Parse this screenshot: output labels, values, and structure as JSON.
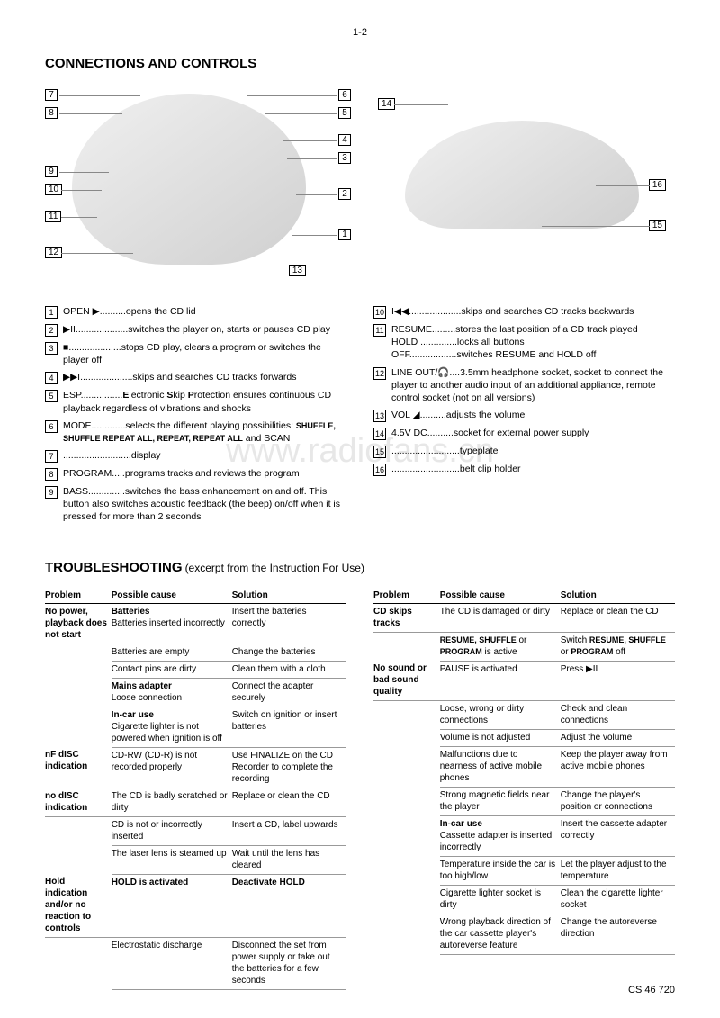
{
  "page_number": "1-2",
  "title": "CONNECTIONS AND CONTROLS",
  "watermark": "www.radiofans.cn",
  "diagram1_callouts": [
    "1",
    "2",
    "3",
    "4",
    "5",
    "6",
    "7",
    "8",
    "9",
    "10",
    "11",
    "12",
    "13"
  ],
  "diagram2_callouts": [
    "14",
    "15",
    "16"
  ],
  "controls_left": [
    {
      "num": "1",
      "label": "OPEN ▶",
      "desc": "..........opens the CD lid"
    },
    {
      "num": "2",
      "label": "▶II",
      "desc": "....................switches the player on, starts or pauses CD play"
    },
    {
      "num": "3",
      "label": "■",
      "desc": "....................stops CD play, clears a program or switches the player off"
    },
    {
      "num": "4",
      "label": "▶▶I",
      "desc": "....................skips and searches CD tracks forwards"
    },
    {
      "num": "5",
      "label": "ESP",
      "desc": "................Electronic Skip Protection ensures continuous CD playback regardless of vibrations and shocks"
    },
    {
      "num": "6",
      "label": "MODE",
      "desc": ".............selects the different playing possibilities: SHUFFLE, SHUFFLE REPEAT ALL, REPEAT, REPEAT ALL and SCAN"
    },
    {
      "num": "7",
      "label": "",
      "desc": "..........................display"
    },
    {
      "num": "8",
      "label": "PROGRAM",
      "desc": ".....programs tracks and reviews the program"
    },
    {
      "num": "9",
      "label": "BASS",
      "desc": "..............switches the bass enhancement on and off. This button also switches acoustic feedback (the beep) on/off when it is pressed for more than 2 seconds"
    }
  ],
  "controls_right": [
    {
      "num": "10",
      "label": "I◀◀",
      "desc": "....................skips and searches CD tracks backwards"
    },
    {
      "num": "11",
      "label": "RESUME",
      "desc": ".........stores the last position of a CD track played\nHOLD ..............locks all buttons\nOFF..................switches RESUME and HOLD off"
    },
    {
      "num": "12",
      "label": "LINE OUT/🎧",
      "desc": "....3.5mm headphone socket, socket to connect the player to another audio input of an additional appliance, remote control socket (not on all versions)"
    },
    {
      "num": "13",
      "label": "VOL ◢",
      "desc": "..........adjusts the volume"
    },
    {
      "num": "14",
      "label": "4.5V DC",
      "desc": "..........socket for external power supply"
    },
    {
      "num": "15",
      "label": "",
      "desc": "..........................typeplate"
    },
    {
      "num": "16",
      "label": "",
      "desc": "..........................belt clip holder"
    }
  ],
  "trouble_title": "TROUBLESHOOTING",
  "trouble_sub": "(excerpt from the Instruction For Use)",
  "trouble_headers": [
    "Problem",
    "Possible cause",
    "Solution"
  ],
  "trouble_left": [
    {
      "p": "No power, playback does not start",
      "c": "Batteries\nBatteries inserted incorrectly",
      "s": "Insert the batteries correctly",
      "pb": true,
      "cb": true
    },
    {
      "p": "",
      "c": "Batteries are empty",
      "s": "Change the batteries"
    },
    {
      "p": "",
      "c": "Contact pins are dirty",
      "s": "Clean them with a cloth"
    },
    {
      "p": "",
      "c": "Mains adapter\nLoose connection",
      "s": "Connect the adapter securely",
      "cb": true
    },
    {
      "p": "",
      "c": "In-car use\nCigarette lighter is not powered when ignition is off",
      "s": "Switch on ignition or insert batteries",
      "cb": true
    },
    {
      "p": "nF dISC indication",
      "c": "CD-RW (CD-R) is not recorded properly",
      "s": "Use FINALIZE on the CD Recorder to complete the recording"
    },
    {
      "p": "no dISC indication",
      "c": "The CD is badly scratched or dirty",
      "s": "Replace or clean the CD"
    },
    {
      "p": "",
      "c": "CD is not or incorrectly inserted",
      "s": "Insert a CD, label upwards"
    },
    {
      "p": "",
      "c": "The laser lens is steamed up",
      "s": "Wait until the lens has cleared"
    },
    {
      "p": "Hold indication and/or no reaction to controls",
      "c": "HOLD is activated",
      "s": "Deactivate HOLD",
      "pb": true,
      "cb2": true,
      "sb": true
    },
    {
      "p": "",
      "c": "Electrostatic discharge",
      "s": "Disconnect the set from power supply or take out the batteries for a few seconds"
    }
  ],
  "trouble_right": [
    {
      "p": "CD skips tracks",
      "c": "The CD is damaged or dirty",
      "s": "Replace or clean the CD",
      "pb": true
    },
    {
      "p": "",
      "c": "RESUME, SHUFFLE or PROGRAM is active",
      "s": "Switch RESUME, SHUFFLE or PROGRAM off",
      "sc": true
    },
    {
      "p": "No sound or bad sound quality",
      "c": "PAUSE is activated",
      "s": "Press ▶II",
      "pb": true
    },
    {
      "p": "",
      "c": "Loose, wrong or dirty connections",
      "s": "Check and clean connections"
    },
    {
      "p": "",
      "c": "Volume is not adjusted",
      "s": "Adjust the volume"
    },
    {
      "p": "",
      "c": "Malfunctions due to nearness of active mobile phones",
      "s": "Keep the player away from active mobile phones"
    },
    {
      "p": "",
      "c": "Strong magnetic fields near the player",
      "s": "Change the player's position or connections"
    },
    {
      "p": "",
      "c": "In-car use\nCassette adapter is inserted incorrectly",
      "s": "Insert the cassette adapter correctly",
      "cb": true
    },
    {
      "p": "",
      "c": "Temperature inside the car is too high/low",
      "s": "Let the player adjust to the temperature"
    },
    {
      "p": "",
      "c": "Cigarette lighter socket is dirty",
      "s": "Clean the cigarette lighter socket"
    },
    {
      "p": "",
      "c": "Wrong playback direction of the car cassette player's autoreverse feature",
      "s": "Change the autoreverse direction"
    }
  ],
  "footer": "CS 46 720"
}
